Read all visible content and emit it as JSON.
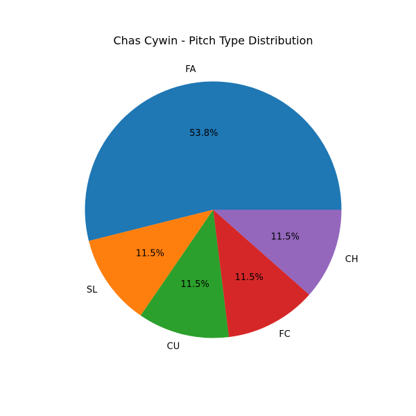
{
  "chart_data": {
    "type": "pie",
    "title": "Chas Cywin - Pitch Type Distribution",
    "categories": [
      "FA",
      "SL",
      "CU",
      "FC",
      "CH"
    ],
    "values": [
      53.8,
      11.5,
      11.5,
      11.5,
      11.5
    ],
    "value_labels": [
      "53.8%",
      "11.5%",
      "11.5%",
      "11.5%",
      "11.5%"
    ],
    "colors": [
      "#1f77b4",
      "#ff7f0e",
      "#2ca02c",
      "#d62728",
      "#9467bd"
    ],
    "start_angle_deg": 0,
    "direction": "counterclockwise",
    "legend": "none"
  }
}
